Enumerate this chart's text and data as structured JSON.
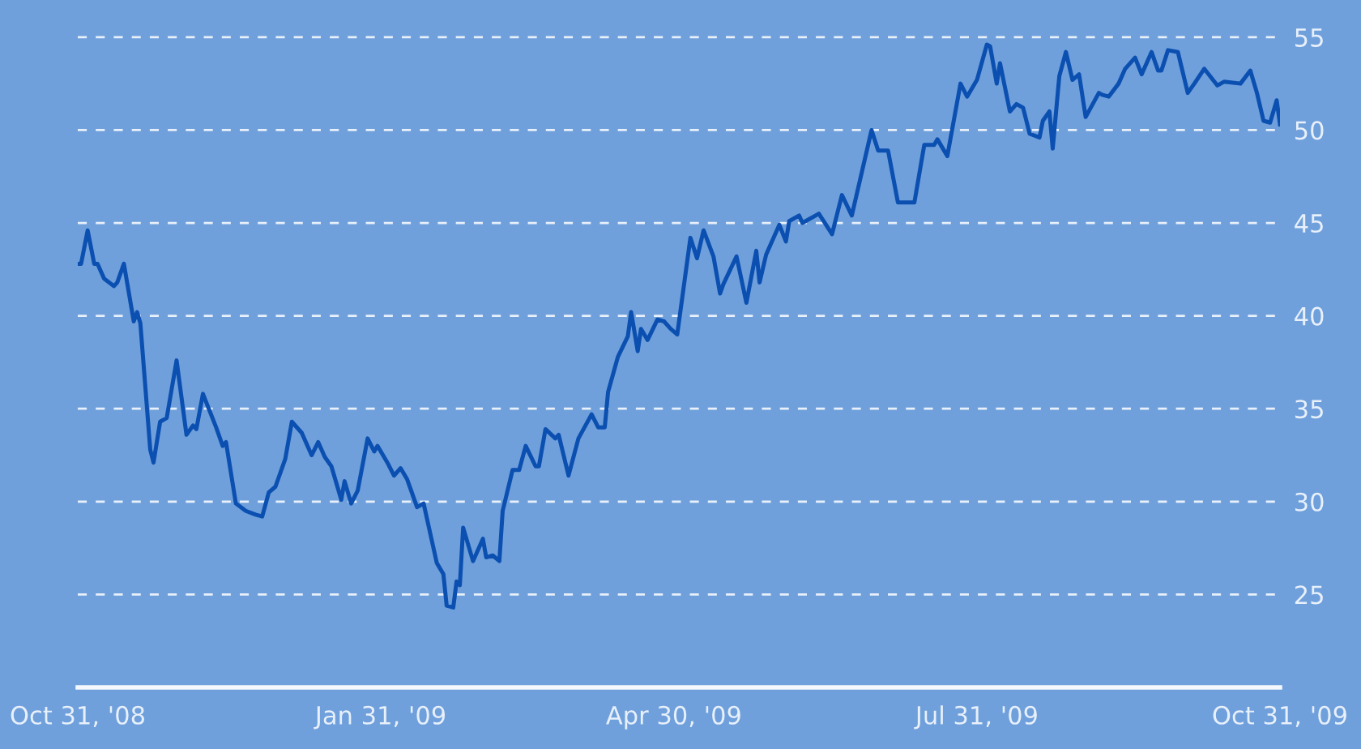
{
  "chart_data": {
    "type": "line",
    "x": [
      "2008-10-31",
      "2008-11-01",
      "2008-11-03",
      "2008-11-05",
      "2008-11-06",
      "2008-11-08",
      "2008-11-11",
      "2008-11-12",
      "2008-11-14",
      "2008-11-17",
      "2008-11-18",
      "2008-11-19",
      "2008-11-22",
      "2008-11-23",
      "2008-11-25",
      "2008-11-27",
      "2008-11-30",
      "2008-12-03",
      "2008-12-05",
      "2008-12-06",
      "2008-12-08",
      "2008-12-12",
      "2008-12-14",
      "2008-12-15",
      "2008-12-18",
      "2008-12-21",
      "2008-12-24",
      "2008-12-26",
      "2008-12-28",
      "2008-12-30",
      "2009-01-02",
      "2009-01-04",
      "2009-01-07",
      "2009-01-10",
      "2009-01-12",
      "2009-01-14",
      "2009-01-16",
      "2009-01-19",
      "2009-01-20",
      "2009-01-22",
      "2009-01-24",
      "2009-01-27",
      "2009-01-29",
      "2009-01-30",
      "2009-02-02",
      "2009-02-04",
      "2009-02-06",
      "2009-02-08",
      "2009-02-11",
      "2009-02-13",
      "2009-02-17",
      "2009-02-19",
      "2009-02-20",
      "2009-02-22",
      "2009-02-23",
      "2009-02-24",
      "2009-02-25",
      "2009-02-28",
      "2009-03-03",
      "2009-03-04",
      "2009-03-06",
      "2009-03-08",
      "2009-03-09",
      "2009-03-12",
      "2009-03-14",
      "2009-03-16",
      "2009-03-19",
      "2009-03-20",
      "2009-03-22",
      "2009-03-25",
      "2009-03-26",
      "2009-03-29",
      "2009-04-01",
      "2009-04-05",
      "2009-04-07",
      "2009-04-09",
      "2009-04-10",
      "2009-04-13",
      "2009-04-16",
      "2009-04-17",
      "2009-04-19",
      "2009-04-20",
      "2009-04-22",
      "2009-04-25",
      "2009-04-27",
      "2009-04-29",
      "2009-05-01",
      "2009-05-05",
      "2009-05-07",
      "2009-05-09",
      "2009-05-12",
      "2009-05-14",
      "2009-05-15",
      "2009-05-19",
      "2009-05-22",
      "2009-05-25",
      "2009-05-26",
      "2009-05-28",
      "2009-06-01",
      "2009-06-03",
      "2009-06-04",
      "2009-06-07",
      "2009-06-08",
      "2009-06-13",
      "2009-06-17",
      "2009-06-20",
      "2009-06-23",
      "2009-06-29",
      "2009-07-01",
      "2009-07-04",
      "2009-07-07",
      "2009-07-10",
      "2009-07-12",
      "2009-07-15",
      "2009-07-18",
      "2009-07-19",
      "2009-07-22",
      "2009-07-26",
      "2009-07-28",
      "2009-07-31",
      "2009-08-03",
      "2009-08-04",
      "2009-08-06",
      "2009-08-07",
      "2009-08-10",
      "2009-08-12",
      "2009-08-14",
      "2009-08-16",
      "2009-08-19",
      "2009-08-20",
      "2009-08-22",
      "2009-08-23",
      "2009-08-25",
      "2009-08-27",
      "2009-08-29",
      "2009-08-31",
      "2009-09-02",
      "2009-09-06",
      "2009-09-07",
      "2009-09-09",
      "2009-09-12",
      "2009-09-14",
      "2009-09-17",
      "2009-09-19",
      "2009-09-22",
      "2009-09-24",
      "2009-09-25",
      "2009-09-27",
      "2009-09-30",
      "2009-10-03",
      "2009-10-05",
      "2009-10-08",
      "2009-10-12",
      "2009-10-14",
      "2009-10-19",
      "2009-10-22",
      "2009-10-24",
      "2009-10-26",
      "2009-10-28",
      "2009-10-30",
      "2009-10-31"
    ],
    "series": [
      {
        "color": "#0b4fb0",
        "values": [
          42.8,
          42.8,
          44.6,
          42.8,
          42.8,
          42.0,
          41.6,
          41.8,
          42.8,
          39.7,
          40.2,
          39.6,
          32.8,
          32.1,
          34.3,
          34.5,
          37.6,
          33.6,
          34.1,
          33.9,
          35.8,
          34.0,
          33.0,
          33.2,
          29.9,
          29.5,
          29.3,
          29.2,
          30.5,
          30.8,
          32.3,
          34.3,
          33.7,
          32.5,
          33.2,
          32.4,
          31.9,
          30.1,
          31.1,
          29.9,
          30.6,
          33.4,
          32.7,
          33.0,
          32.1,
          31.4,
          31.8,
          31.2,
          29.7,
          29.9,
          26.7,
          26.1,
          24.4,
          24.3,
          25.7,
          25.5,
          28.6,
          26.8,
          28.0,
          27.0,
          27.1,
          26.8,
          29.5,
          31.7,
          31.7,
          33.0,
          31.9,
          31.9,
          33.9,
          33.4,
          33.6,
          31.4,
          33.4,
          34.7,
          34.0,
          34.0,
          35.9,
          37.8,
          38.9,
          40.2,
          38.1,
          39.3,
          38.7,
          39.8,
          39.7,
          39.3,
          39.0,
          44.2,
          43.1,
          44.6,
          43.2,
          41.2,
          41.7,
          43.2,
          40.7,
          43.5,
          41.8,
          43.3,
          44.9,
          44.0,
          45.1,
          45.4,
          45.0,
          45.5,
          44.4,
          46.5,
          45.4,
          50.0,
          48.9,
          48.9,
          46.1,
          46.1,
          46.1,
          49.2,
          49.2,
          49.5,
          48.6,
          52.5,
          51.8,
          52.7,
          54.6,
          54.5,
          52.5,
          53.6,
          51.0,
          51.4,
          51.2,
          49.8,
          49.6,
          50.5,
          51.0,
          49.0,
          52.9,
          54.2,
          52.7,
          53.0,
          50.7,
          52.0,
          51.9,
          51.8,
          52.5,
          53.3,
          53.9,
          53.0,
          54.2,
          53.2,
          53.2,
          54.3,
          54.2,
          52.0,
          52.5,
          53.3,
          52.4,
          52.6,
          52.5,
          53.2,
          52.0,
          50.5,
          50.4,
          51.6,
          50.3
        ]
      }
    ],
    "xlim": [
      "2008-10-31",
      "2009-10-31"
    ],
    "xticks": [
      {
        "value": "2008-10-31",
        "label": "Oct 31, '08"
      },
      {
        "value": "2009-01-31",
        "label": "Jan 31, '09"
      },
      {
        "value": "2009-04-30",
        "label": "Apr 30, '09"
      },
      {
        "value": "2009-07-31",
        "label": "Jul 31, '09"
      },
      {
        "value": "2009-10-31",
        "label": "Oct 31, '09"
      }
    ],
    "ylim": [
      20,
      57
    ],
    "yticks": [
      25,
      30,
      35,
      40,
      45,
      50,
      55
    ],
    "grid": "y",
    "line_style": "solid",
    "marker": "none"
  }
}
